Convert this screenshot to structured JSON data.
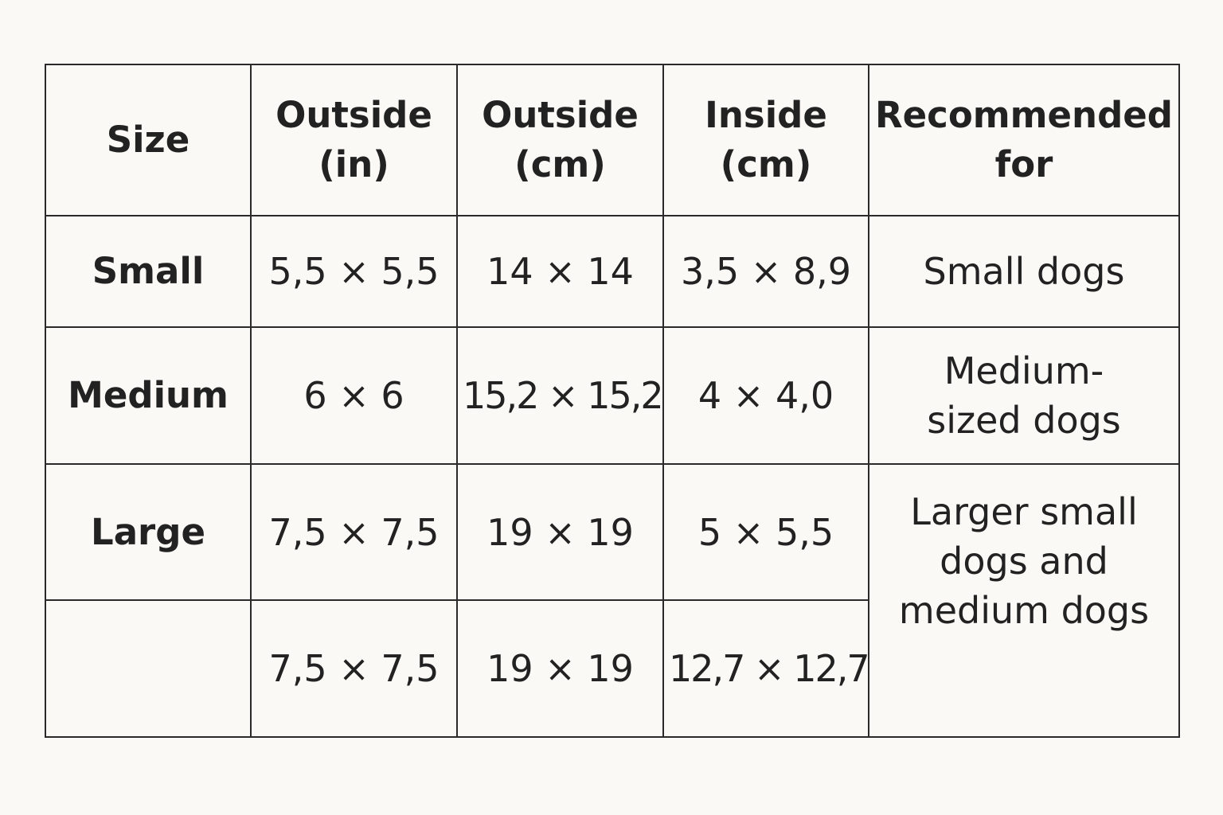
{
  "table": {
    "headers": [
      {
        "line1": "Size",
        "line2": ""
      },
      {
        "line1": "Outside",
        "line2": "(in)"
      },
      {
        "line1": "Outside",
        "line2": "(cm)"
      },
      {
        "line1": "Inside",
        "line2": "(cm)"
      },
      {
        "line1": "Recommended",
        "line2": "for"
      }
    ],
    "rows": [
      {
        "size": "Small",
        "outside_in": "5,5 × 5,5",
        "outside_cm": "14 × 14",
        "inside_cm": "3,5 × 8,9",
        "recommended": [
          "Small dogs"
        ]
      },
      {
        "size": "Medium",
        "outside_in": "6 × 6",
        "outside_cm": "15,2 × 15,2",
        "inside_cm": "4 × 4,0",
        "recommended": [
          "Medium-",
          "sized dogs"
        ]
      },
      {
        "size": "Large",
        "outside_in": "7,5 × 7,5",
        "outside_cm": "19 × 19",
        "inside_cm": "5 × 5,5",
        "recommended": [
          "Larger small",
          "dogs and",
          "medium dogs"
        ]
      },
      {
        "size": "",
        "outside_in": "7,5 × 7,5",
        "outside_cm": "19 × 19",
        "inside_cm": "12,7 × 12,7"
      }
    ]
  }
}
